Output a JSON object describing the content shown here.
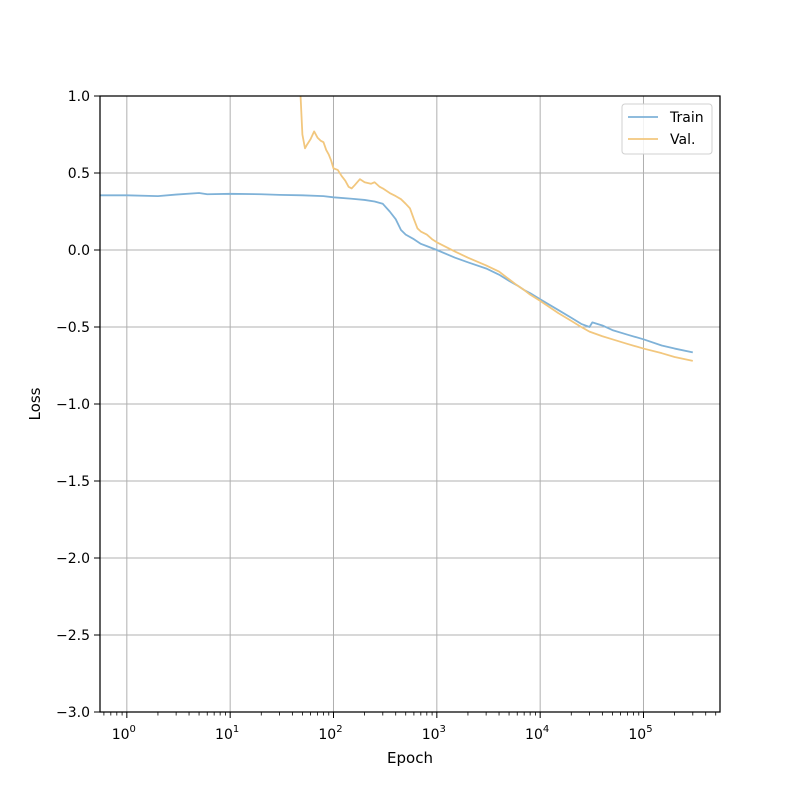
{
  "chart_data": {
    "type": "line",
    "title": "",
    "xlabel": "Epoch",
    "ylabel": "Loss",
    "xscale": "log",
    "xlim": [
      0.55,
      550000
    ],
    "ylim": [
      -3.0,
      1.0
    ],
    "grid": true,
    "legend_position": "top-right",
    "x_ticks": [
      {
        "value": 1,
        "label": "10",
        "exp": "0"
      },
      {
        "value": 10,
        "label": "10",
        "exp": "1"
      },
      {
        "value": 100,
        "label": "10",
        "exp": "2"
      },
      {
        "value": 1000,
        "label": "10",
        "exp": "3"
      },
      {
        "value": 10000,
        "label": "10",
        "exp": "4"
      },
      {
        "value": 100000,
        "label": "10",
        "exp": "5"
      }
    ],
    "y_ticks": [
      {
        "value": 1.0,
        "label": "1.0"
      },
      {
        "value": 0.5,
        "label": "0.5"
      },
      {
        "value": 0.0,
        "label": "0.0"
      },
      {
        "value": -0.5,
        "label": "−0.5"
      },
      {
        "value": -1.0,
        "label": "−1.0"
      },
      {
        "value": -1.5,
        "label": "−1.5"
      },
      {
        "value": -2.0,
        "label": "−2.0"
      },
      {
        "value": -2.5,
        "label": "−2.5"
      },
      {
        "value": -3.0,
        "label": "−3.0"
      }
    ],
    "series": [
      {
        "name": "Train",
        "color": "#7fb2d8",
        "points": [
          [
            0.55,
            0.355
          ],
          [
            1,
            0.355
          ],
          [
            2,
            0.35
          ],
          [
            3,
            0.36
          ],
          [
            5,
            0.37
          ],
          [
            6,
            0.362
          ],
          [
            10,
            0.365
          ],
          [
            20,
            0.362
          ],
          [
            30,
            0.358
          ],
          [
            50,
            0.355
          ],
          [
            80,
            0.35
          ],
          [
            100,
            0.342
          ],
          [
            150,
            0.333
          ],
          [
            200,
            0.325
          ],
          [
            250,
            0.315
          ],
          [
            300,
            0.3
          ],
          [
            350,
            0.25
          ],
          [
            400,
            0.2
          ],
          [
            450,
            0.13
          ],
          [
            500,
            0.1
          ],
          [
            600,
            0.07
          ],
          [
            700,
            0.04
          ],
          [
            800,
            0.025
          ],
          [
            1000,
            0.0
          ],
          [
            1500,
            -0.05
          ],
          [
            2000,
            -0.08
          ],
          [
            3000,
            -0.12
          ],
          [
            4000,
            -0.16
          ],
          [
            5000,
            -0.2
          ],
          [
            6000,
            -0.23
          ],
          [
            7000,
            -0.26
          ],
          [
            8000,
            -0.28
          ],
          [
            10000,
            -0.32
          ],
          [
            15000,
            -0.39
          ],
          [
            20000,
            -0.44
          ],
          [
            25000,
            -0.48
          ],
          [
            30000,
            -0.5
          ],
          [
            32000,
            -0.47
          ],
          [
            40000,
            -0.49
          ],
          [
            50000,
            -0.52
          ],
          [
            70000,
            -0.55
          ],
          [
            100000,
            -0.58
          ],
          [
            150000,
            -0.62
          ],
          [
            200000,
            -0.64
          ],
          [
            300000,
            -0.665
          ]
        ]
      },
      {
        "name": "Val.",
        "color": "#f2c77e",
        "points": [
          [
            48,
            1.0
          ],
          [
            50,
            0.75
          ],
          [
            53,
            0.66
          ],
          [
            55,
            0.68
          ],
          [
            60,
            0.72
          ],
          [
            65,
            0.77
          ],
          [
            70,
            0.73
          ],
          [
            75,
            0.71
          ],
          [
            80,
            0.7
          ],
          [
            85,
            0.65
          ],
          [
            90,
            0.62
          ],
          [
            95,
            0.58
          ],
          [
            100,
            0.53
          ],
          [
            110,
            0.52
          ],
          [
            120,
            0.48
          ],
          [
            130,
            0.45
          ],
          [
            140,
            0.41
          ],
          [
            150,
            0.4
          ],
          [
            160,
            0.42
          ],
          [
            180,
            0.46
          ],
          [
            200,
            0.44
          ],
          [
            230,
            0.43
          ],
          [
            250,
            0.44
          ],
          [
            280,
            0.41
          ],
          [
            300,
            0.4
          ],
          [
            350,
            0.37
          ],
          [
            400,
            0.35
          ],
          [
            450,
            0.33
          ],
          [
            500,
            0.3
          ],
          [
            550,
            0.27
          ],
          [
            600,
            0.2
          ],
          [
            650,
            0.14
          ],
          [
            700,
            0.12
          ],
          [
            800,
            0.1
          ],
          [
            900,
            0.07
          ],
          [
            1000,
            0.05
          ],
          [
            1500,
            -0.01
          ],
          [
            2000,
            -0.05
          ],
          [
            3000,
            -0.1
          ],
          [
            4000,
            -0.14
          ],
          [
            5000,
            -0.19
          ],
          [
            6000,
            -0.23
          ],
          [
            7000,
            -0.26
          ],
          [
            8000,
            -0.29
          ],
          [
            10000,
            -0.33
          ],
          [
            15000,
            -0.41
          ],
          [
            20000,
            -0.46
          ],
          [
            25000,
            -0.5
          ],
          [
            30000,
            -0.53
          ],
          [
            40000,
            -0.56
          ],
          [
            50000,
            -0.58
          ],
          [
            70000,
            -0.61
          ],
          [
            100000,
            -0.64
          ],
          [
            150000,
            -0.67
          ],
          [
            200000,
            -0.695
          ],
          [
            300000,
            -0.72
          ]
        ]
      }
    ]
  }
}
